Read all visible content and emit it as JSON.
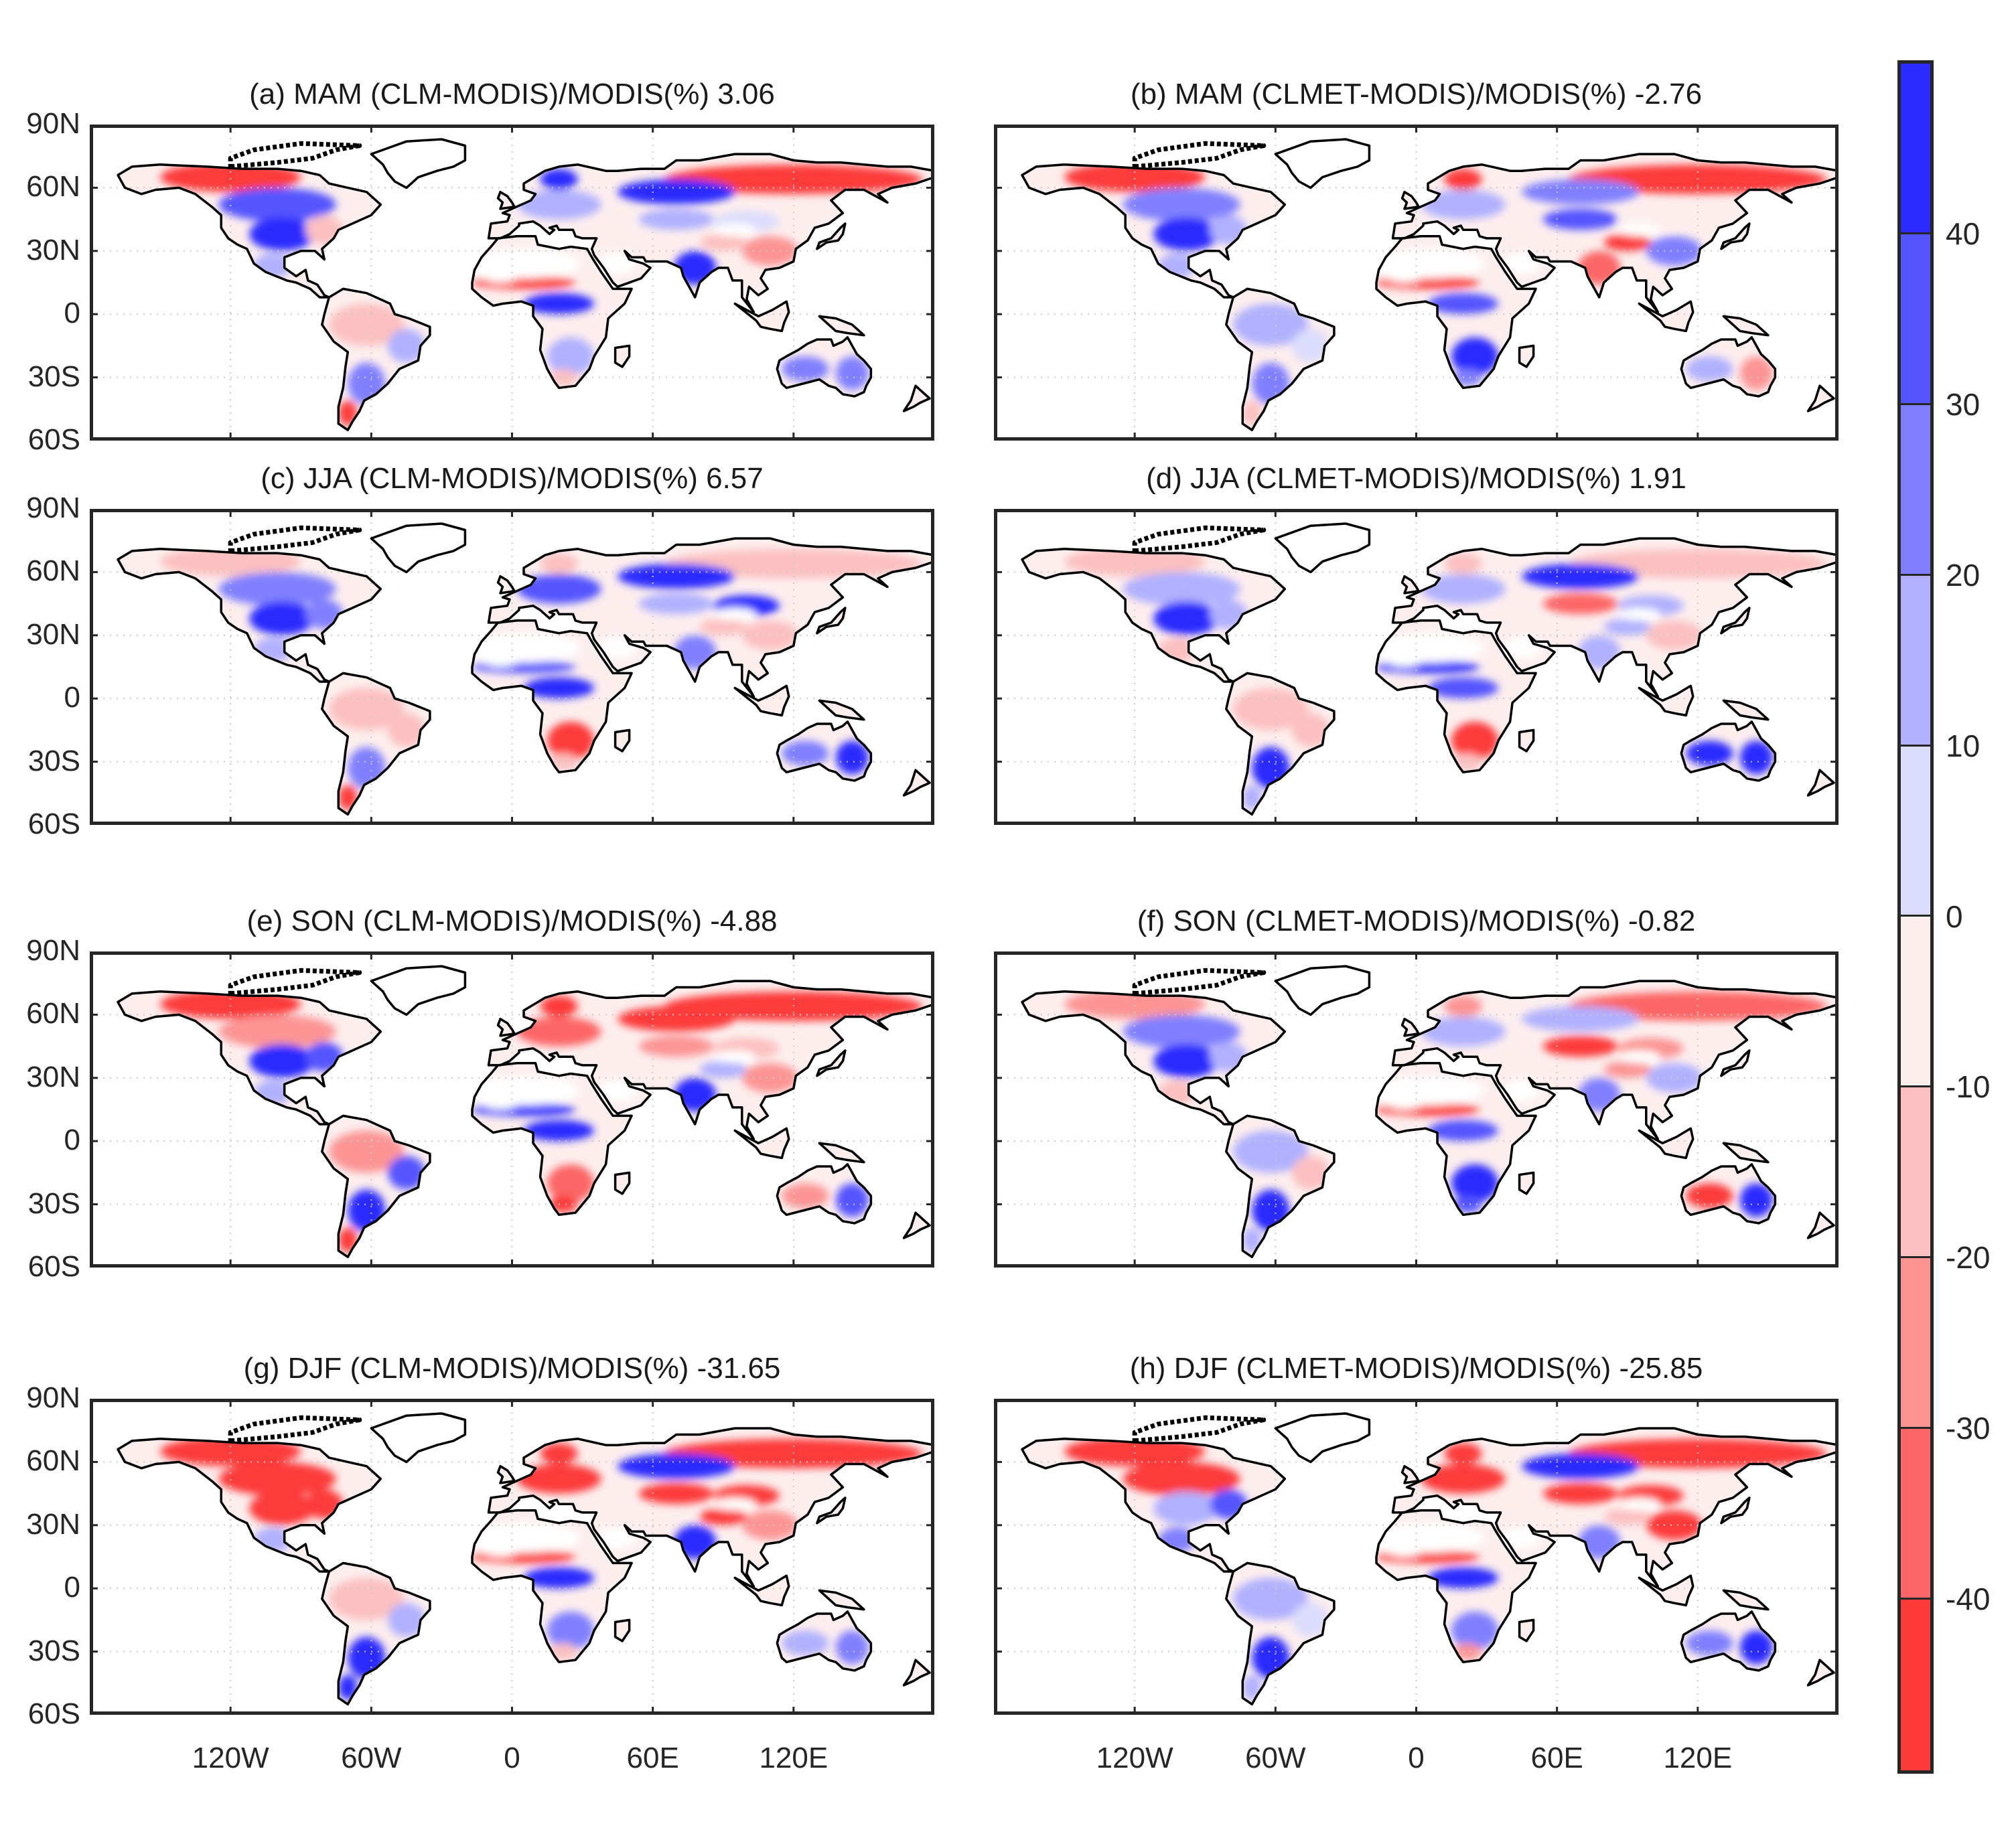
{
  "figure": {
    "panels": [
      {
        "id": "a",
        "title": "(a) MAM (CLM-MODIS)/MODIS(%) 3.06",
        "season": "MAM",
        "model": "CLM",
        "mean_rel_diff": 3.06
      },
      {
        "id": "b",
        "title": "(b) MAM (CLMET-MODIS)/MODIS(%) -2.76",
        "season": "MAM",
        "model": "CLMET",
        "mean_rel_diff": -2.76
      },
      {
        "id": "c",
        "title": "(c) JJA (CLM-MODIS)/MODIS(%) 6.57",
        "season": "JJA",
        "model": "CLM",
        "mean_rel_diff": 6.57
      },
      {
        "id": "d",
        "title": "(d) JJA (CLMET-MODIS)/MODIS(%) 1.91",
        "season": "JJA",
        "model": "CLMET",
        "mean_rel_diff": 1.91
      },
      {
        "id": "e",
        "title": "(e) SON (CLM-MODIS)/MODIS(%) -4.88",
        "season": "SON",
        "model": "CLM",
        "mean_rel_diff": -4.88
      },
      {
        "id": "f",
        "title": "(f) SON (CLMET-MODIS)/MODIS(%) -0.82",
        "season": "SON",
        "model": "CLMET",
        "mean_rel_diff": -0.82
      },
      {
        "id": "g",
        "title": "(g) DJF (CLM-MODIS)/MODIS(%) -31.65",
        "season": "DJF",
        "model": "CLM",
        "mean_rel_diff": -31.65
      },
      {
        "id": "h",
        "title": "(h) DJF (CLMET-MODIS)/MODIS(%) -25.85",
        "season": "DJF",
        "model": "CLMET",
        "mean_rel_diff": -25.85
      }
    ],
    "y_ticks": [
      "90N",
      "60N",
      "30N",
      "0",
      "30S",
      "60S"
    ],
    "x_ticks": [
      "120W",
      "60W",
      "0",
      "60E",
      "120E"
    ],
    "colorbar": {
      "ticks": [
        "40",
        "30",
        "20",
        "10",
        "0",
        "-10",
        "-20",
        "-30",
        "-40"
      ],
      "colors": [
        "#2a2aff",
        "#5555ff",
        "#8080ff",
        "#b0b0ff",
        "#dcdcfc",
        "#fdeeee",
        "#fcc0c0",
        "#fc9494",
        "#fc6666",
        "#fc3a3a"
      ]
    }
  },
  "chart_data": {
    "type": "heatmap",
    "title": "Relative difference (model - MODIS)/MODIS (%) by season",
    "panels": [
      {
        "label": "(a)",
        "season": "MAM",
        "model": "CLM",
        "global_mean_percent": 3.06
      },
      {
        "label": "(b)",
        "season": "MAM",
        "model": "CLMET",
        "global_mean_percent": -2.76
      },
      {
        "label": "(c)",
        "season": "JJA",
        "model": "CLM",
        "global_mean_percent": 6.57
      },
      {
        "label": "(d)",
        "season": "JJA",
        "model": "CLMET",
        "global_mean_percent": 1.91
      },
      {
        "label": "(e)",
        "season": "SON",
        "model": "CLM",
        "global_mean_percent": -4.88
      },
      {
        "label": "(f)",
        "season": "SON",
        "model": "CLMET",
        "global_mean_percent": -0.82
      },
      {
        "label": "(g)",
        "season": "DJF",
        "model": "CLM",
        "global_mean_percent": -31.65
      },
      {
        "label": "(h)",
        "season": "DJF",
        "model": "CLMET",
        "global_mean_percent": -25.85
      }
    ],
    "x_ticks": [
      "120W",
      "60W",
      "0",
      "60E",
      "120E"
    ],
    "y_ticks": [
      "90N",
      "60N",
      "30N",
      "0",
      "30S",
      "60S"
    ],
    "xlim": [
      -180,
      180
    ],
    "ylim": [
      -60,
      90
    ],
    "colorbar": {
      "levels": [
        -50,
        -40,
        -30,
        -20,
        -10,
        0,
        10,
        20,
        30,
        40,
        50
      ],
      "tick_labels": [
        "40",
        "30",
        "20",
        "10",
        "0",
        "-10",
        "-20",
        "-30",
        "-40"
      ],
      "cmap": "blue-white-red (blue positive, red negative)"
    },
    "grid": "dotted gray at 60-degree longitude and 30-degree latitude"
  }
}
